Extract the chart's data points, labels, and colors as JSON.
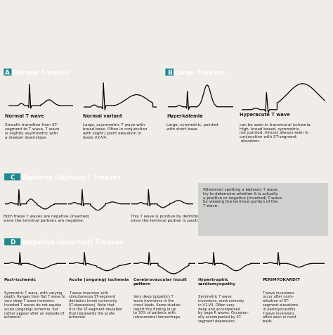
{
  "teal_color": "#3db8c0",
  "bg_color": "#f0ede8",
  "text_color": "#222222",
  "gray_box": "#d0d0ce",
  "sections": [
    {
      "label": "A",
      "title": "Normal T-waves"
    },
    {
      "label": "B",
      "title": "Large T-waves"
    },
    {
      "label": "C",
      "title": "Biphasic (diphasic) T-waves"
    },
    {
      "label": "D",
      "title": "Negative (inverted) T-waves"
    }
  ],
  "panelA_waves": [
    {
      "name": "Normal T wave",
      "desc": "Smooth transition from ST-\nsegment to T wave. T wave\nis slightly asymmetric with\na steeper downslope."
    },
    {
      "name": "Normal variant",
      "desc": "Large, asymmetric T wave with\nbroad base. Often in conjunction\nwith slight J point elevation in\nleads V2-V4."
    }
  ],
  "panelB_waves": [
    {
      "name": "Hyperkalemia",
      "desc": "Large, symmetric, pointed\nwith short base."
    },
    {
      "name": "Hyperacute T wave",
      "desc": "can be seen in transmural ischemia.\nHigh, broad based, symmetric,\nnot pointed. Almost always seen in\nconjunction with ST-segment\n elevation."
    }
  ],
  "panelC_desc1": "Both these T waves are negative (inverted)\nsince the terminal portions are negative.",
  "panelC_desc2": "This T wave is positive by definition\nsince the terminal portion is positive.",
  "panelC_note": "Whenever spotting a biphasic T wave,\ntry to determine whether it is actually\na positive or negative (inverted) T-wave\nby viewing the terminal portion of the\nT wave.",
  "panelD_waves": [
    {
      "name": "Post-ischemic",
      "desc": "Symmetric T wave, with varying\ndepth. Ranges from flat T wave to\nvery deep T wave inversion.\nInverted T waves do not equate\nacute (ongoing) ischemia, but\nrather appear after an episode of\nischemia!"
    },
    {
      "name": "Acute (ongoing) ischemia",
      "desc": "T wave inversion with\nsimultaneous ST-segment\ndeviation (most commonly\nST-depression). Note that\nit is the ST-segment deviation\nthat represents the acute\nischemia!"
    },
    {
      "name": "Cerebrovascular insult\npattern",
      "desc": "Very deep (gigantic) T\nwave inversions in the\nchest leads. Some studies\nreport this finding in up\nto 30% of patients with\nintracerebral hemorrhage."
    },
    {
      "name": "Hypertrophic\ncardiomyopathy",
      "desc": "Symmetric T wave\ninversions, most comoniy\nin V1-V3. Often very\ndeep and accompanied\nby large R waves. Occasion-\nally accompanied by ST-\nsegment depression."
    },
    {
      "name": "PERIMYOKARDIT",
      "desc": "T wave inversions\noccur after norm-\nalization of ST-\nsegment elevations\nin perimyocarditis.\nT wave inversions\noften seen in most\nleads."
    }
  ]
}
